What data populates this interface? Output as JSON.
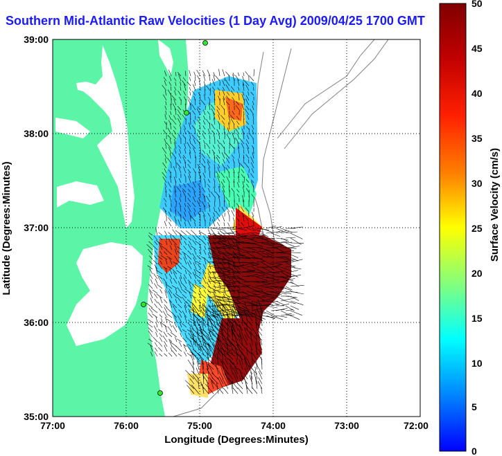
{
  "title": "Southern Mid-Atlantic Raw Velocities (1 Day Avg) 2009/04/25 1700 GMT",
  "x_axis": {
    "label": "Longitude (Degrees:Minutes)",
    "ticks": [
      "77:00",
      "76:00",
      "75:00",
      "74:00",
      "73:00",
      "72:00"
    ]
  },
  "y_axis": {
    "label": "Latitude (Degrees:Minutes)",
    "ticks": [
      "39:00",
      "38:00",
      "37:00",
      "36:00",
      "35:00"
    ]
  },
  "colorbar": {
    "label": "Surface Velocity (cm/s)",
    "ticks": [
      "50",
      "45",
      "40",
      "35",
      "30",
      "25",
      "20",
      "15",
      "10",
      "5",
      "0"
    ],
    "min": 0,
    "max": 50,
    "colormap": "jet"
  },
  "colors": {
    "land": "#5cf5a8",
    "title": "#1a1aff",
    "vectors": "#000000",
    "grid": "#000000",
    "bathymetry": "#808080"
  },
  "map_extent": {
    "lon_min": -77,
    "lon_max": -72,
    "lat_min": 35,
    "lat_max": 39
  }
}
